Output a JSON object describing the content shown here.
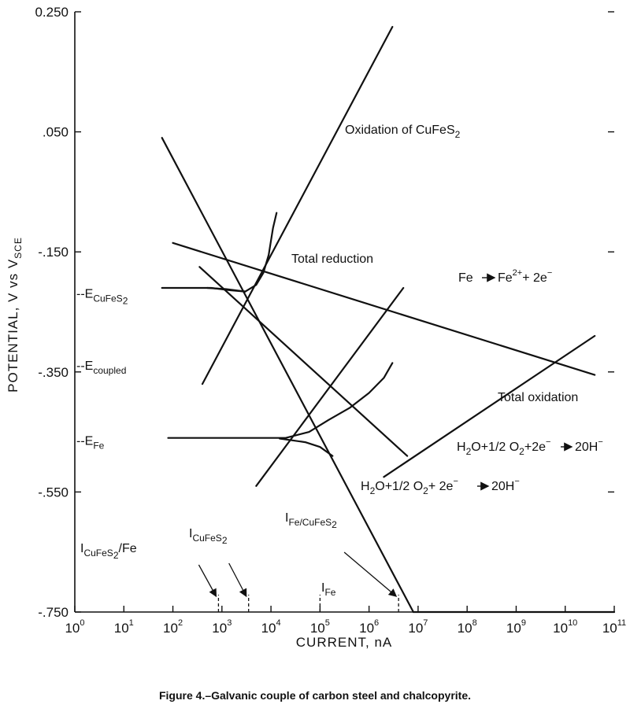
{
  "caption": "Figure 4.–Galvanic couple of carbon steel and chalcopyrite.",
  "chart_data": {
    "type": "line",
    "x_scale": "log",
    "xlim": [
      1,
      100000000000
    ],
    "ylim": [
      -0.75,
      0.25
    ],
    "grid": false,
    "xlabel": {
      "base": "CURRENT, ",
      "unit": "nA"
    },
    "ylabel": {
      "pre": "POTENTIAL, V vs V",
      "sub": "SCE"
    },
    "y_ticks": [
      {
        "value": 0.25,
        "label": "0.250"
      },
      {
        "value": 0.05,
        "label": ".050"
      },
      {
        "value": -0.15,
        "label": "-.150"
      },
      {
        "value": -0.35,
        "label": "-.350"
      },
      {
        "value": -0.55,
        "label": "-.550"
      },
      {
        "value": -0.75,
        "label": "-.750"
      }
    ],
    "x_ticks": [
      {
        "value": 1,
        "base": "10",
        "exp": "0"
      },
      {
        "value": 10,
        "base": "10",
        "exp": "1"
      },
      {
        "value": 100,
        "base": "10",
        "exp": "2"
      },
      {
        "value": 1000,
        "base": "10",
        "exp": "3"
      },
      {
        "value": 10000,
        "base": "10",
        "exp": "4"
      },
      {
        "value": 100000,
        "base": "10",
        "exp": "5"
      },
      {
        "value": 1000000,
        "base": "10",
        "exp": "6"
      },
      {
        "value": 10000000,
        "base": "10",
        "exp": "7"
      },
      {
        "value": 100000000,
        "base": "10",
        "exp": "8"
      },
      {
        "value": 1000000000,
        "base": "10",
        "exp": "9"
      },
      {
        "value": 10000000000,
        "base": "10",
        "exp": "10"
      },
      {
        "value": 100000000000,
        "base": "10",
        "exp": "11"
      }
    ],
    "potential_markers": [
      {
        "y": -0.22,
        "pre": "--E",
        "sub": "CuFeS",
        "sub2": "2"
      },
      {
        "y": -0.34,
        "pre": "--E",
        "sub": "coupled",
        "sub2": ""
      },
      {
        "y": -0.465,
        "pre": "--E",
        "sub": "Fe",
        "sub2": ""
      }
    ],
    "series": [
      {
        "id": "oxidation-cufes2",
        "points": [
          [
            400,
            -0.37
          ],
          [
            3000000,
            0.225
          ]
        ]
      },
      {
        "id": "fe-oxidation",
        "points": [
          [
            5000,
            -0.54
          ],
          [
            5000000,
            -0.21
          ]
        ]
      },
      {
        "id": "fe-reduction",
        "points": [
          [
            60,
            0.04
          ],
          [
            8000000,
            -0.75
          ]
        ]
      },
      {
        "id": "cufes2-reduction",
        "points": [
          [
            350,
            -0.175
          ],
          [
            6000000,
            -0.49
          ]
        ]
      },
      {
        "id": "total-reduction",
        "points": [
          [
            100,
            -0.135
          ],
          [
            40000000000,
            -0.355
          ]
        ]
      },
      {
        "id": "total-oxidation",
        "points": [
          [
            2000000,
            -0.525
          ],
          [
            40000000000,
            -0.29
          ]
        ]
      },
      {
        "id": "cufes2-polarization-anodic",
        "points": [
          [
            60,
            -0.21
          ],
          [
            600,
            -0.21
          ],
          [
            1500,
            -0.214
          ],
          [
            3000,
            -0.216
          ],
          [
            5000,
            -0.205
          ],
          [
            7000,
            -0.185
          ],
          [
            9000,
            -0.155
          ],
          [
            11000,
            -0.11
          ],
          [
            13000,
            -0.085
          ]
        ]
      },
      {
        "id": "cufes2-polarization-cathodic",
        "points": [
          [
            500,
            -0.21
          ],
          [
            1200,
            -0.212
          ],
          [
            3000,
            -0.216
          ]
        ]
      },
      {
        "id": "fe-polarization-anodic",
        "points": [
          [
            80,
            -0.46
          ],
          [
            20000,
            -0.46
          ],
          [
            60000,
            -0.45
          ],
          [
            150000,
            -0.43
          ],
          [
            400000,
            -0.41
          ],
          [
            1000000,
            -0.385
          ],
          [
            2000000,
            -0.36
          ],
          [
            3000000,
            -0.335
          ]
        ]
      },
      {
        "id": "fe-polarization-cathodic",
        "points": [
          [
            15000,
            -0.461
          ],
          [
            50000,
            -0.467
          ],
          [
            100000,
            -0.475
          ],
          [
            180000,
            -0.49
          ]
        ]
      },
      {
        "id": "zero-current-baseline",
        "points": [
          [
            8000000,
            -0.75
          ],
          [
            100000000000,
            -0.75
          ]
        ]
      }
    ],
    "currents": [
      {
        "id": "i-cufes2-fe",
        "x": 850,
        "pre": "I",
        "sub": "CuFeS",
        "sub2": "2",
        "tail": "/Fe"
      },
      {
        "id": "i-cufes2",
        "x": 3500,
        "pre": "I",
        "sub": "CuFeS",
        "sub2": "2",
        "tail": ""
      },
      {
        "id": "i-fe",
        "x": 100000,
        "pre": "I",
        "sub": "Fe",
        "sub2": "",
        "tail": ""
      },
      {
        "id": "i-fe-cufes2",
        "x": 4000000,
        "pre": "I",
        "sub": "Fe/CuFeS",
        "sub2": "2",
        "tail": ""
      }
    ],
    "annotations": {
      "oxidation": {
        "text": "Oxidation of CuFeS",
        "sub": "2"
      },
      "total_reduction": "Total reduction",
      "fe_reaction": {
        "a": "Fe",
        "b": "Fe",
        "sup": "2+",
        "c": "+ 2e",
        "sup2": "−"
      },
      "total_oxidation": "Total oxidation",
      "water1": {
        "a": "H",
        "s1": "2",
        "b": "O+1/2 O",
        "s2": "2",
        "c": "+2e",
        "sup": "−",
        "d": "20H",
        "sup2": "−"
      },
      "water2": {
        "a": "H",
        "s1": "2",
        "b": "O+1/2 O",
        "s2": "2",
        "c": "+ 2e",
        "sup": "−",
        "d": "20H",
        "sup2": "−"
      }
    }
  }
}
